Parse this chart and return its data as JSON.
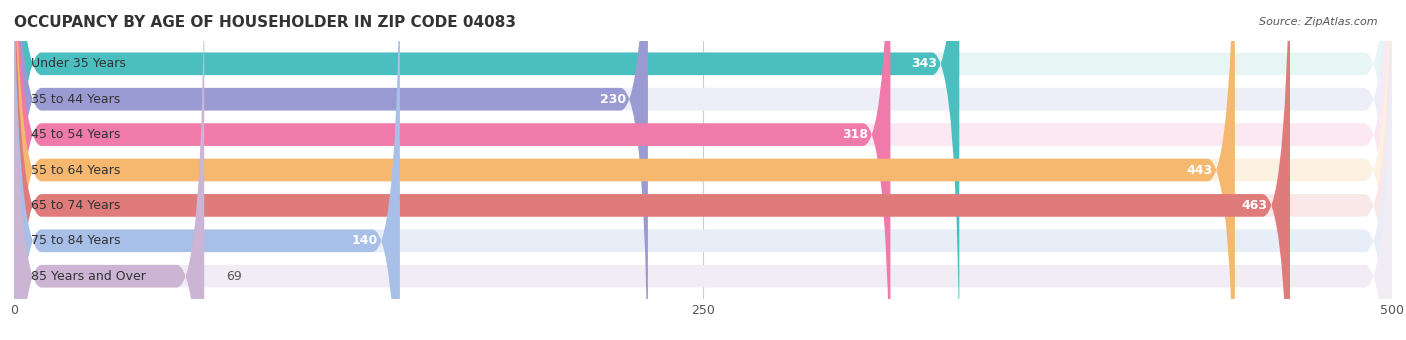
{
  "title": "OCCUPANCY BY AGE OF HOUSEHOLDER IN ZIP CODE 04083",
  "source": "Source: ZipAtlas.com",
  "categories": [
    "Under 35 Years",
    "35 to 44 Years",
    "45 to 54 Years",
    "55 to 64 Years",
    "65 to 74 Years",
    "75 to 84 Years",
    "85 Years and Over"
  ],
  "values": [
    343,
    230,
    318,
    443,
    463,
    140,
    69
  ],
  "bar_colors": [
    "#4bbfbf",
    "#9b9bd4",
    "#f07baa",
    "#f5b86e",
    "#e07b7b",
    "#a8bfe8",
    "#cbb4d4"
  ],
  "bar_bg_colors": [
    "#e8f5f5",
    "#eeeef8",
    "#fce8f2",
    "#fdf2e2",
    "#f9e8e8",
    "#e8eef8",
    "#f2ecf5"
  ],
  "xlim": [
    0,
    500
  ],
  "xticks": [
    0,
    250,
    500
  ],
  "label_fontsize": 9,
  "value_fontsize": 9,
  "title_fontsize": 11,
  "bar_height": 0.62,
  "background_color": "#f5f5f5"
}
